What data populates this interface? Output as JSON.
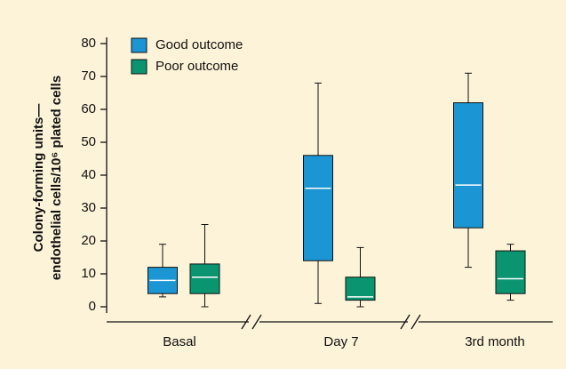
{
  "chart_data": {
    "type": "box",
    "y_label": [
      "Colony-forming units—",
      "endothelial cells/10⁶ plated cells"
    ],
    "categories": [
      "Basal",
      "Day 7",
      "3rd month"
    ],
    "series": [
      {
        "name": "Good outcome",
        "color": "#1b95d3",
        "values": [
          {
            "min": 3,
            "q1": 4,
            "median": 8,
            "q3": 12,
            "max": 19
          },
          {
            "min": 1,
            "q1": 14,
            "median": 36,
            "q3": 46,
            "max": 68
          },
          {
            "min": 12,
            "q1": 24,
            "median": 37,
            "q3": 62,
            "max": 71
          }
        ]
      },
      {
        "name": "Poor outcome",
        "color": "#0a9570",
        "values": [
          {
            "min": 0,
            "q1": 4,
            "median": 9,
            "q3": 13,
            "max": 25
          },
          {
            "min": 0,
            "q1": 2,
            "median": 3,
            "q3": 9,
            "max": 18
          },
          {
            "min": 2,
            "q1": 4,
            "median": 8.5,
            "q3": 17,
            "max": 19
          }
        ]
      }
    ],
    "ylim": [
      -2,
      82
    ],
    "yticks": [
      0,
      10,
      20,
      30,
      40,
      50,
      60,
      70,
      80
    ]
  }
}
